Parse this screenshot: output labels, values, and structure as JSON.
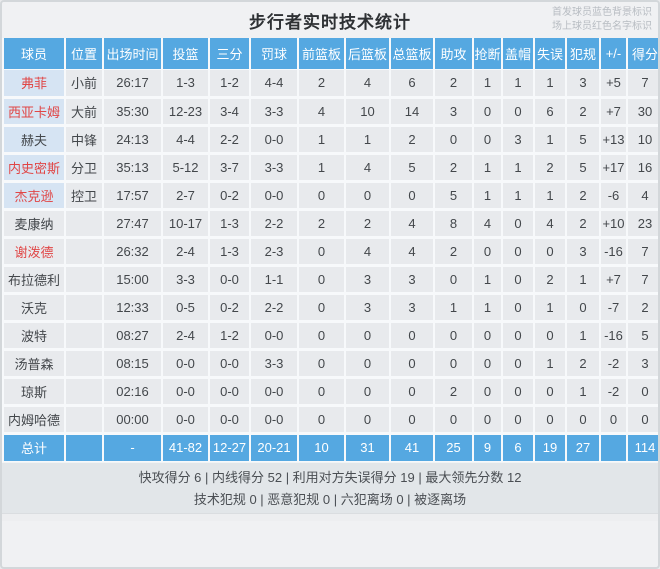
{
  "title": "步行者实时技术统计",
  "legend": {
    "line1": "首发球员蓝色背景标识",
    "line2": "场上球员红色名字标识"
  },
  "colors": {
    "header_blue": "#55a8e1",
    "starter_cell_blue": "#d6e4f3",
    "on_court_red": "#e04646",
    "cell_gray": "#e8eaed"
  },
  "table": {
    "columns": [
      "球员",
      "位置",
      "出场时间",
      "投篮",
      "三分",
      "罚球",
      "前篮板",
      "后篮板",
      "总篮板",
      "助攻",
      "抢断",
      "盖帽",
      "失误",
      "犯规",
      "+/-",
      "得分"
    ],
    "players": [
      {
        "name": "弗菲",
        "position": "小前",
        "starter": true,
        "on_court": true,
        "stats": [
          "26:17",
          "1-3",
          "1-2",
          "4-4",
          "2",
          "4",
          "6",
          "2",
          "1",
          "1",
          "1",
          "3",
          "+5",
          "7"
        ]
      },
      {
        "name": "西亚卡姆",
        "position": "大前",
        "starter": true,
        "on_court": true,
        "stats": [
          "35:30",
          "12-23",
          "3-4",
          "3-3",
          "4",
          "10",
          "14",
          "3",
          "0",
          "0",
          "6",
          "2",
          "+7",
          "30"
        ]
      },
      {
        "name": "赫夫",
        "position": "中锋",
        "starter": true,
        "on_court": false,
        "stats": [
          "24:13",
          "4-4",
          "2-2",
          "0-0",
          "1",
          "1",
          "2",
          "0",
          "0",
          "3",
          "1",
          "5",
          "+13",
          "10"
        ]
      },
      {
        "name": "内史密斯",
        "position": "分卫",
        "starter": true,
        "on_court": true,
        "stats": [
          "35:13",
          "5-12",
          "3-7",
          "3-3",
          "1",
          "4",
          "5",
          "2",
          "1",
          "1",
          "2",
          "5",
          "+17",
          "16"
        ]
      },
      {
        "name": "杰克逊",
        "position": "控卫",
        "starter": true,
        "on_court": true,
        "stats": [
          "17:57",
          "2-7",
          "0-2",
          "0-0",
          "0",
          "0",
          "0",
          "5",
          "1",
          "1",
          "1",
          "2",
          "-6",
          "4"
        ]
      },
      {
        "name": "麦康纳",
        "position": "",
        "starter": false,
        "on_court": false,
        "stats": [
          "27:47",
          "10-17",
          "1-3",
          "2-2",
          "2",
          "2",
          "4",
          "8",
          "4",
          "0",
          "4",
          "2",
          "+10",
          "23"
        ]
      },
      {
        "name": "谢泼德",
        "position": "",
        "starter": false,
        "on_court": true,
        "stats": [
          "26:32",
          "2-4",
          "1-3",
          "2-3",
          "0",
          "4",
          "4",
          "2",
          "0",
          "0",
          "0",
          "3",
          "-16",
          "7"
        ]
      },
      {
        "name": "布拉德利",
        "position": "",
        "starter": false,
        "on_court": false,
        "stats": [
          "15:00",
          "3-3",
          "0-0",
          "1-1",
          "0",
          "3",
          "3",
          "0",
          "1",
          "0",
          "2",
          "1",
          "+7",
          "7"
        ]
      },
      {
        "name": "沃克",
        "position": "",
        "starter": false,
        "on_court": false,
        "stats": [
          "12:33",
          "0-5",
          "0-2",
          "2-2",
          "0",
          "3",
          "3",
          "1",
          "1",
          "0",
          "1",
          "0",
          "-7",
          "2"
        ]
      },
      {
        "name": "波特",
        "position": "",
        "starter": false,
        "on_court": false,
        "stats": [
          "08:27",
          "2-4",
          "1-2",
          "0-0",
          "0",
          "0",
          "0",
          "0",
          "0",
          "0",
          "0",
          "1",
          "-16",
          "5"
        ]
      },
      {
        "name": "汤普森",
        "position": "",
        "starter": false,
        "on_court": false,
        "stats": [
          "08:15",
          "0-0",
          "0-0",
          "3-3",
          "0",
          "0",
          "0",
          "0",
          "0",
          "0",
          "1",
          "2",
          "-2",
          "3"
        ]
      },
      {
        "name": "琼斯",
        "position": "",
        "starter": false,
        "on_court": false,
        "stats": [
          "02:16",
          "0-0",
          "0-0",
          "0-0",
          "0",
          "0",
          "0",
          "2",
          "0",
          "0",
          "0",
          "1",
          "-2",
          "0"
        ]
      },
      {
        "name": "内姆哈德",
        "position": "",
        "starter": false,
        "on_court": false,
        "stats": [
          "00:00",
          "0-0",
          "0-0",
          "0-0",
          "0",
          "0",
          "0",
          "0",
          "0",
          "0",
          "0",
          "0",
          "0",
          "0"
        ]
      }
    ],
    "totals": {
      "label": "总计",
      "position": "",
      "stats": [
        "-",
        "41-82",
        "12-27",
        "20-21",
        "10",
        "31",
        "41",
        "25",
        "9",
        "6",
        "19",
        "27",
        "",
        "114"
      ]
    }
  },
  "footer": {
    "line1": "快攻得分 6 | 内线得分 52 | 利用对方失误得分 19 | 最大领先分数 12",
    "line2": "技术犯规 0 | 恶意犯规 0 | 六犯离场 0 | 被逐离场"
  }
}
